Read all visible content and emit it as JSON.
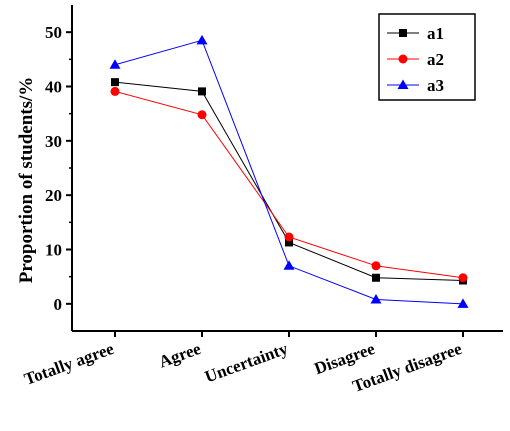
{
  "chart_data": {
    "type": "line",
    "title": "",
    "xlabel": "",
    "ylabel": "Proportion of students/%",
    "categories": [
      "Totally agree",
      "Agree",
      "Uncertainty",
      "Disagree",
      "Totally disagree"
    ],
    "ylim": [
      -5,
      55
    ],
    "yticks": [
      0,
      10,
      20,
      30,
      40,
      50
    ],
    "grid": false,
    "legend_position": "top-right",
    "series": [
      {
        "name": "a1",
        "color": "#000000",
        "marker": "square",
        "values": [
          40.8,
          39.1,
          11.3,
          4.8,
          4.3
        ]
      },
      {
        "name": "a2",
        "color": "#ff0000",
        "marker": "circle",
        "values": [
          39.1,
          34.8,
          12.3,
          7.0,
          4.8
        ]
      },
      {
        "name": "a3",
        "color": "#0000ff",
        "marker": "triangle",
        "values": [
          44.0,
          48.5,
          7.0,
          0.8,
          0.0
        ]
      }
    ]
  }
}
